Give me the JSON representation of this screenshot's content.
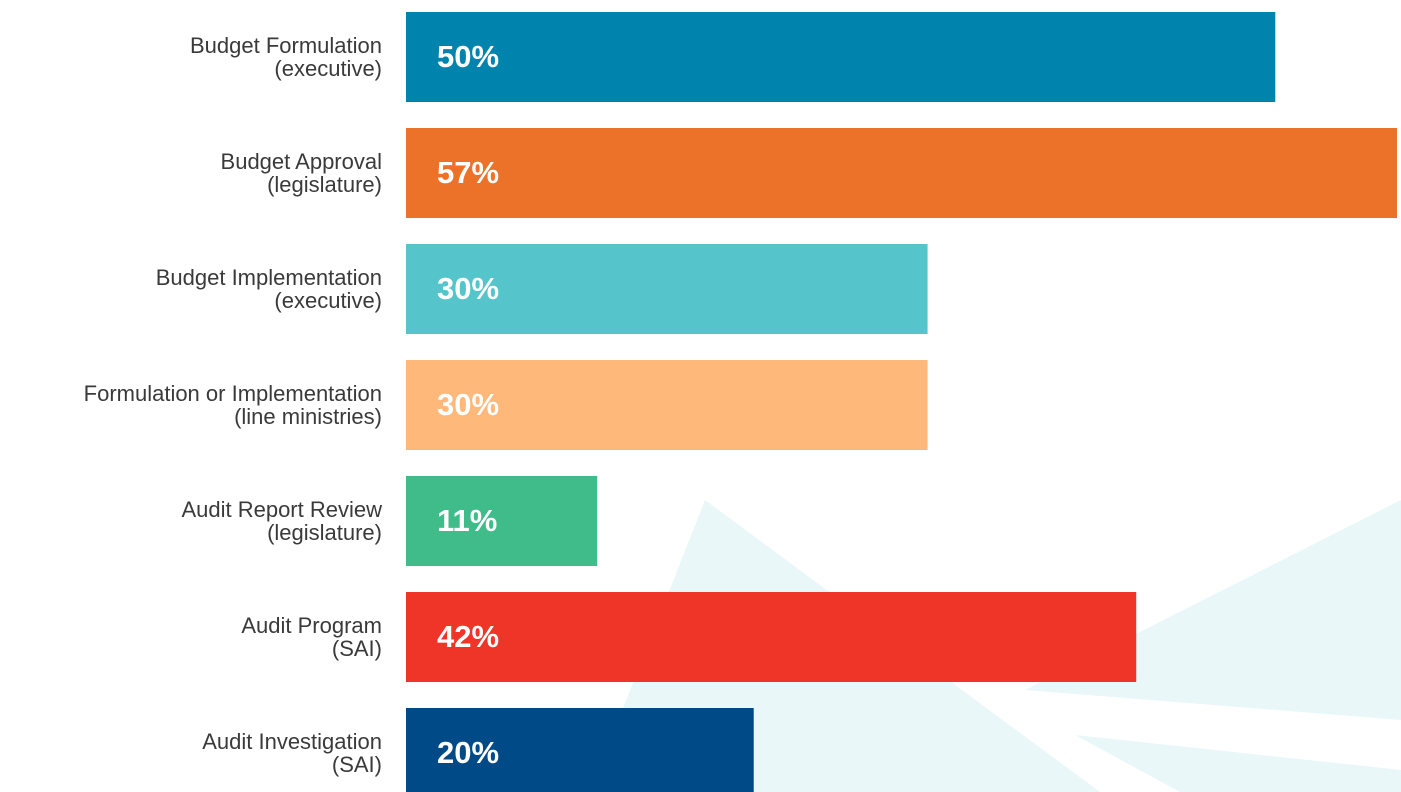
{
  "chart_data": {
    "type": "bar",
    "orientation": "horizontal",
    "categories": [
      [
        "Budget Formulation",
        "(executive)"
      ],
      [
        "Budget Approval",
        "(legislature)"
      ],
      [
        "Budget Implementation",
        "(executive)"
      ],
      [
        "Formulation or Implementation",
        "(line ministries)"
      ],
      [
        "Audit Report Review",
        "(legislature)"
      ],
      [
        "Audit Program",
        "(SAI)"
      ],
      [
        "Audit Investigation",
        "(SAI)"
      ]
    ],
    "values": [
      50,
      57,
      30,
      30,
      11,
      42,
      20
    ],
    "value_labels": [
      "50%",
      "57%",
      "30%",
      "30%",
      "11%",
      "42%",
      "20%"
    ],
    "colors": [
      "#0083ad",
      "#ec7229",
      "#56c4cb",
      "#feb87a",
      "#40bb8a",
      "#ef3428",
      "#004b87"
    ]
  }
}
